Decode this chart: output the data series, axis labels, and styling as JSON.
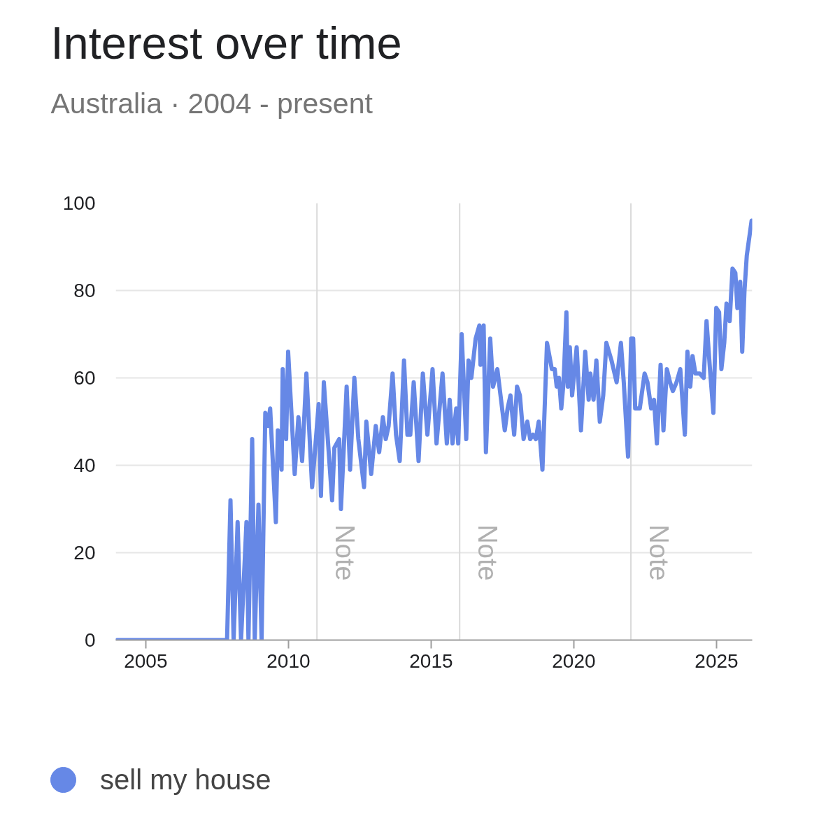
{
  "chart_data": {
    "type": "line",
    "title": "Interest over time",
    "subtitle": "Australia · 2004 - present",
    "xlim": [
      2003.95,
      2026.25
    ],
    "xticks": [
      2005,
      2010,
      2015,
      2020,
      2025
    ],
    "ylim": [
      0,
      100
    ],
    "yticks": [
      0,
      20,
      40,
      60,
      80,
      100
    ],
    "grid": "y",
    "legend": "bottom left",
    "ref_lines": [
      {
        "axis": "x",
        "value": 2011,
        "label": "Note"
      },
      {
        "axis": "x",
        "value": 2016,
        "label": "Note"
      },
      {
        "axis": "x",
        "value": 2022,
        "label": "Note"
      }
    ],
    "series": [
      {
        "name": "sell my house",
        "color": "#6688e6",
        "x": [
          2004.0,
          2007.85,
          2007.97,
          2008.08,
          2008.22,
          2008.34,
          2008.53,
          2008.6,
          2008.73,
          2008.82,
          2008.95,
          2009.06,
          2009.19,
          2009.28,
          2009.36,
          2009.56,
          2009.63,
          2009.76,
          2009.8,
          2009.92,
          2009.99,
          2010.22,
          2010.35,
          2010.48,
          2010.63,
          2010.83,
          2011.06,
          2011.14,
          2011.24,
          2011.53,
          2011.61,
          2011.78,
          2011.84,
          2012.04,
          2012.16,
          2012.31,
          2012.45,
          2012.65,
          2012.73,
          2012.9,
          2013.06,
          2013.18,
          2013.31,
          2013.41,
          2013.51,
          2013.65,
          2013.77,
          2013.9,
          2014.05,
          2014.17,
          2014.27,
          2014.39,
          2014.56,
          2014.71,
          2014.87,
          2015.05,
          2015.19,
          2015.4,
          2015.55,
          2015.65,
          2015.75,
          2015.88,
          2015.95,
          2016.07,
          2016.23,
          2016.31,
          2016.41,
          2016.56,
          2016.69,
          2016.73,
          2016.84,
          2016.92,
          2017.07,
          2017.17,
          2017.32,
          2017.58,
          2017.68,
          2017.78,
          2017.91,
          2018.01,
          2018.11,
          2018.24,
          2018.37,
          2018.47,
          2018.57,
          2018.67,
          2018.77,
          2018.9,
          2019.06,
          2019.23,
          2019.33,
          2019.4,
          2019.48,
          2019.56,
          2019.64,
          2019.74,
          2019.79,
          2019.86,
          2019.94,
          2020.1,
          2020.25,
          2020.4,
          2020.52,
          2020.58,
          2020.69,
          2020.79,
          2020.91,
          2021.03,
          2021.14,
          2021.32,
          2021.5,
          2021.65,
          2021.75,
          2021.9,
          2022.01,
          2022.08,
          2022.15,
          2022.31,
          2022.48,
          2022.58,
          2022.71,
          2022.81,
          2022.91,
          2023.04,
          2023.14,
          2023.26,
          2023.37,
          2023.47,
          2023.6,
          2023.73,
          2023.89,
          2023.98,
          2024.08,
          2024.16,
          2024.26,
          2024.41,
          2024.55,
          2024.65,
          2024.77,
          2024.89,
          2024.99,
          2025.09,
          2025.17,
          2025.27,
          2025.35,
          2025.46,
          2025.56,
          2025.66,
          2025.73,
          2025.83,
          2025.9,
          2025.98,
          2026.06,
          2026.23
        ],
        "values": [
          0,
          0,
          32,
          0,
          27,
          0,
          27,
          0,
          46,
          0,
          31,
          0,
          52,
          49,
          53,
          27,
          48,
          39,
          62,
          46,
          66,
          38,
          51,
          41,
          61,
          35,
          54,
          33,
          59,
          32,
          44,
          46,
          30,
          58,
          39,
          60,
          46,
          35,
          50,
          38,
          49,
          43,
          51,
          46,
          49,
          61,
          47,
          41,
          64,
          47,
          47,
          59,
          41,
          61,
          47,
          62,
          45,
          61,
          45,
          55,
          45,
          53,
          45,
          70,
          46,
          64,
          60,
          69,
          72,
          63,
          72,
          43,
          69,
          58,
          62,
          48,
          53,
          56,
          47,
          58,
          56,
          46,
          50,
          46,
          47,
          46,
          50,
          39,
          68,
          62,
          62,
          58,
          60,
          53,
          59,
          75,
          58,
          67,
          56,
          67,
          48,
          66,
          55,
          61,
          55,
          64,
          50,
          56,
          68,
          64,
          59,
          68,
          59,
          42,
          69,
          69,
          53,
          53,
          61,
          59,
          53,
          55,
          45,
          63,
          48,
          62,
          59,
          57,
          59,
          62,
          47,
          66,
          58,
          65,
          61,
          61,
          60,
          73,
          62,
          52,
          76,
          75,
          62,
          68,
          77,
          73,
          85,
          84,
          76,
          82,
          66,
          80,
          88,
          96
        ]
      }
    ]
  }
}
